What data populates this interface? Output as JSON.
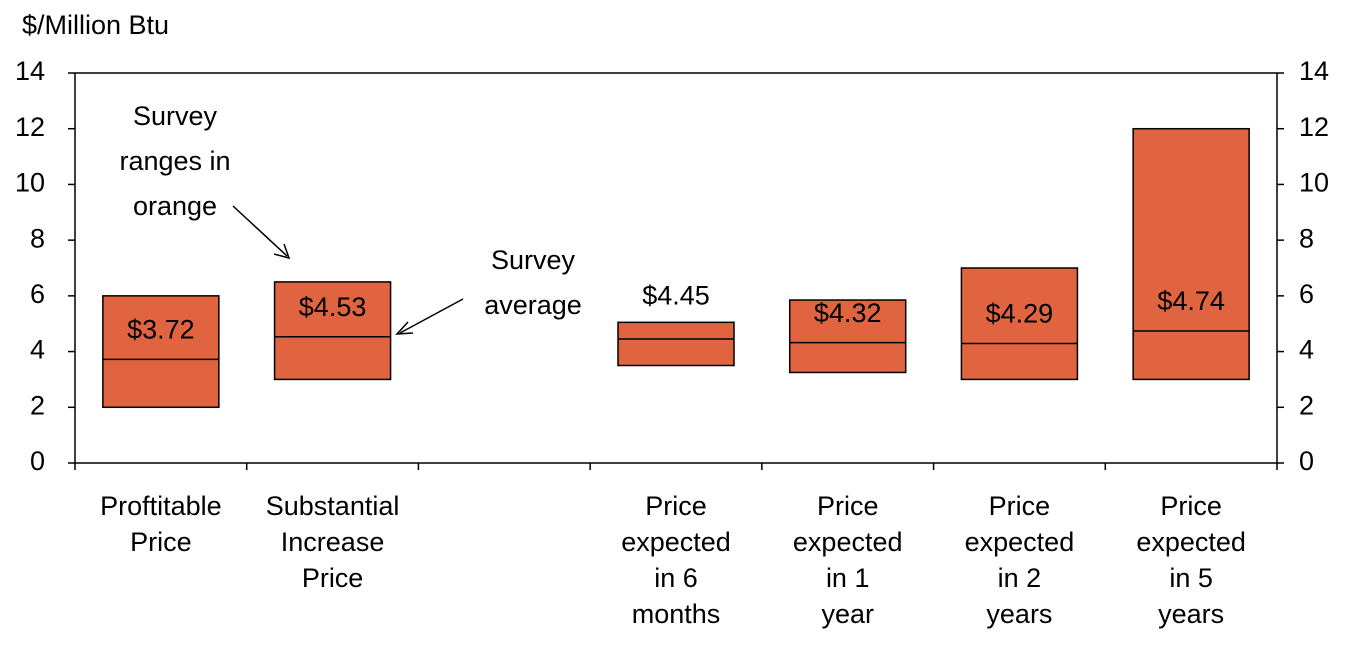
{
  "chart_data": {
    "type": "range-bar",
    "y_label": "$/Million Btu",
    "categories": [
      [
        "Proftitable",
        "Price"
      ],
      [
        "Substantial",
        "Increase",
        "Price"
      ],
      null,
      [
        "Price",
        "expected",
        "in 6",
        "months"
      ],
      [
        "Price",
        "expected",
        "in 1",
        "year"
      ],
      [
        "Price",
        "expected",
        "in 2",
        "years"
      ],
      [
        "Price",
        "expected",
        "in 5",
        "years"
      ]
    ],
    "low": [
      2,
      3,
      null,
      3.5,
      3.25,
      3,
      3
    ],
    "high": [
      6,
      6.5,
      null,
      5.05,
      5.85,
      7,
      12
    ],
    "values": [
      3.72,
      4.53,
      null,
      4.45,
      4.32,
      4.29,
      4.74
    ],
    "value_labels": [
      "$3.72",
      "$4.53",
      null,
      "$4.45",
      "$4.32",
      "$4.29",
      "$4.74"
    ],
    "color": "#e0643f",
    "ylim": [
      0,
      14
    ],
    "yticks": [
      0,
      2,
      4,
      6,
      8,
      10,
      12,
      14
    ],
    "y2lim": [
      0,
      14
    ],
    "y2ticks": [
      0,
      2,
      4,
      6,
      8,
      10,
      12,
      14
    ],
    "annotations": [
      {
        "lines": [
          "Survey",
          "ranges in",
          "orange"
        ]
      },
      {
        "lines": [
          "Survey",
          "average"
        ]
      }
    ]
  }
}
